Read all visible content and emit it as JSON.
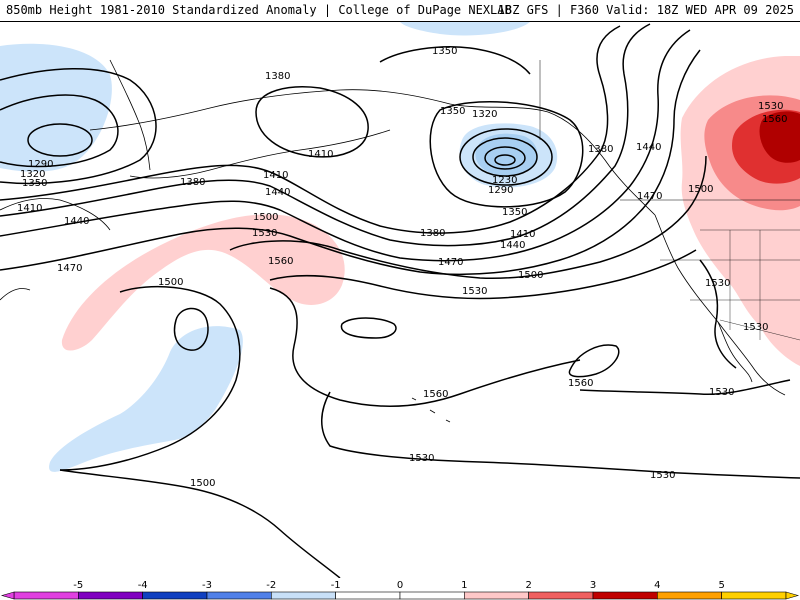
{
  "header": {
    "title_left": "850mb Height 1981-2010 Standardized Anomaly | College of DuPage NEXLAB",
    "title_right": "18Z GFS | F360 Valid: 18Z WED APR 09 2025"
  },
  "map": {
    "contour_labels": [
      {
        "id": "l1350a",
        "text": "1350"
      },
      {
        "id": "l1380a",
        "text": "1380"
      },
      {
        "id": "l1350b",
        "text": "1350"
      },
      {
        "id": "l1320a",
        "text": "1320"
      },
      {
        "id": "l1410a",
        "text": "1410"
      },
      {
        "id": "l1290a",
        "text": "1290"
      },
      {
        "id": "l1320b",
        "text": "1320"
      },
      {
        "id": "l1350c",
        "text": "1350"
      },
      {
        "id": "l1380b",
        "text": "1380"
      },
      {
        "id": "l1410b",
        "text": "1410"
      },
      {
        "id": "l1440a",
        "text": "1440"
      },
      {
        "id": "l1410c",
        "text": "1410"
      },
      {
        "id": "l1440b",
        "text": "1440"
      },
      {
        "id": "l1470a",
        "text": "1470"
      },
      {
        "id": "l1230",
        "text": "1230"
      },
      {
        "id": "l1290b",
        "text": "1290"
      },
      {
        "id": "l1350d",
        "text": "1350"
      },
      {
        "id": "l1380c",
        "text": "1380"
      },
      {
        "id": "l1410d",
        "text": "1410"
      },
      {
        "id": "l1440c",
        "text": "1440"
      },
      {
        "id": "l1470b",
        "text": "1470"
      },
      {
        "id": "l1500a",
        "text": "1500"
      },
      {
        "id": "l1380d",
        "text": "1380"
      },
      {
        "id": "l1440d",
        "text": "1440"
      },
      {
        "id": "l1470c",
        "text": "1470"
      },
      {
        "id": "l1500b",
        "text": "1500"
      },
      {
        "id": "l1530a",
        "text": "1530"
      },
      {
        "id": "l1560a",
        "text": "1560"
      },
      {
        "id": "l1500c",
        "text": "1500"
      },
      {
        "id": "l1530b",
        "text": "1530"
      },
      {
        "id": "l1530c",
        "text": "1530"
      },
      {
        "id": "l1560b",
        "text": "1560"
      },
      {
        "id": "l1560c",
        "text": "1560"
      },
      {
        "id": "l1530d",
        "text": "1530"
      },
      {
        "id": "l1500d",
        "text": "1500"
      },
      {
        "id": "l1530e",
        "text": "1530"
      },
      {
        "id": "l1530f",
        "text": "1530"
      },
      {
        "id": "l1500e",
        "text": "1500"
      },
      {
        "id": "l1530g",
        "text": "1530"
      },
      {
        "id": "l1560d",
        "text": "1560"
      },
      {
        "id": "l1530h",
        "text": "1530"
      }
    ]
  },
  "colorbar": {
    "ticks": [
      "-5",
      "-4",
      "-3",
      "-2",
      "-1",
      "0",
      "1",
      "2",
      "3",
      "4",
      "5"
    ],
    "colors": [
      "#e040e0",
      "#8000c0",
      "#1040c0",
      "#5080e8",
      "#c8e0f8",
      "#ffffff",
      "#ffffff",
      "#ffc8c8",
      "#f06060",
      "#c00000",
      "#ffa000",
      "#ffd000"
    ]
  },
  "colors": {
    "negative_anomaly": "#cce4fa",
    "negative_anomaly_strong": "#a8cff2",
    "positive_anomaly": "#ffd0d0",
    "positive_anomaly_mid": "#f78a8a",
    "positive_anomaly_strong": "#e03030",
    "positive_anomaly_max": "#b00000"
  }
}
